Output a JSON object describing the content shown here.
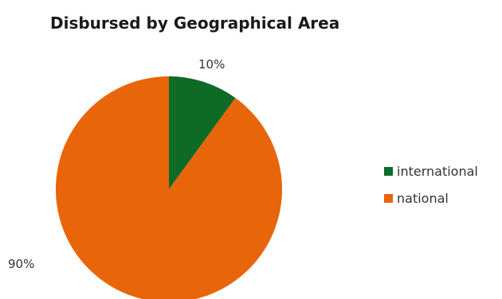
{
  "chart_data": {
    "type": "pie",
    "title": "Disbursed by Geographical Area",
    "categories": [
      "international",
      "national"
    ],
    "values": [
      10,
      90
    ],
    "value_labels": [
      "10%",
      "90%"
    ],
    "colors": [
      "#0e6b26",
      "#e8650a"
    ],
    "start_angle": "12 o'clock",
    "direction": "clockwise",
    "legend_placement": "right"
  }
}
